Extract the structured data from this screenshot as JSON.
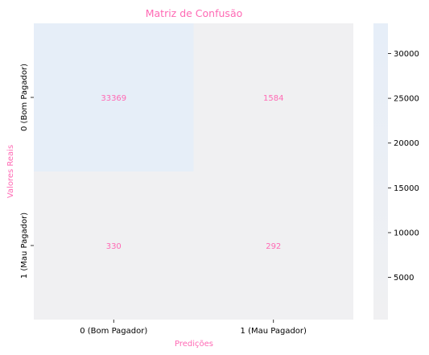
{
  "chart_data": {
    "type": "heatmap",
    "title": "Matriz de Confusão",
    "xlabel": "Predições",
    "ylabel": "Valores Reais",
    "x_categories": [
      "0 (Bom Pagador)",
      "1 (Mau Pagador)"
    ],
    "y_categories": [
      "0 (Bom Pagador)",
      "1 (Mau Pagador)"
    ],
    "values": [
      [
        33369,
        1584
      ],
      [
        330,
        292
      ]
    ],
    "colorbar": {
      "range": [
        292,
        33369
      ],
      "ticks": [
        5000,
        10000,
        15000,
        20000,
        25000,
        30000
      ]
    },
    "colors": {
      "text": "#ff69b4",
      "low": "#f0f0f2",
      "high": "#e6eef8"
    }
  }
}
